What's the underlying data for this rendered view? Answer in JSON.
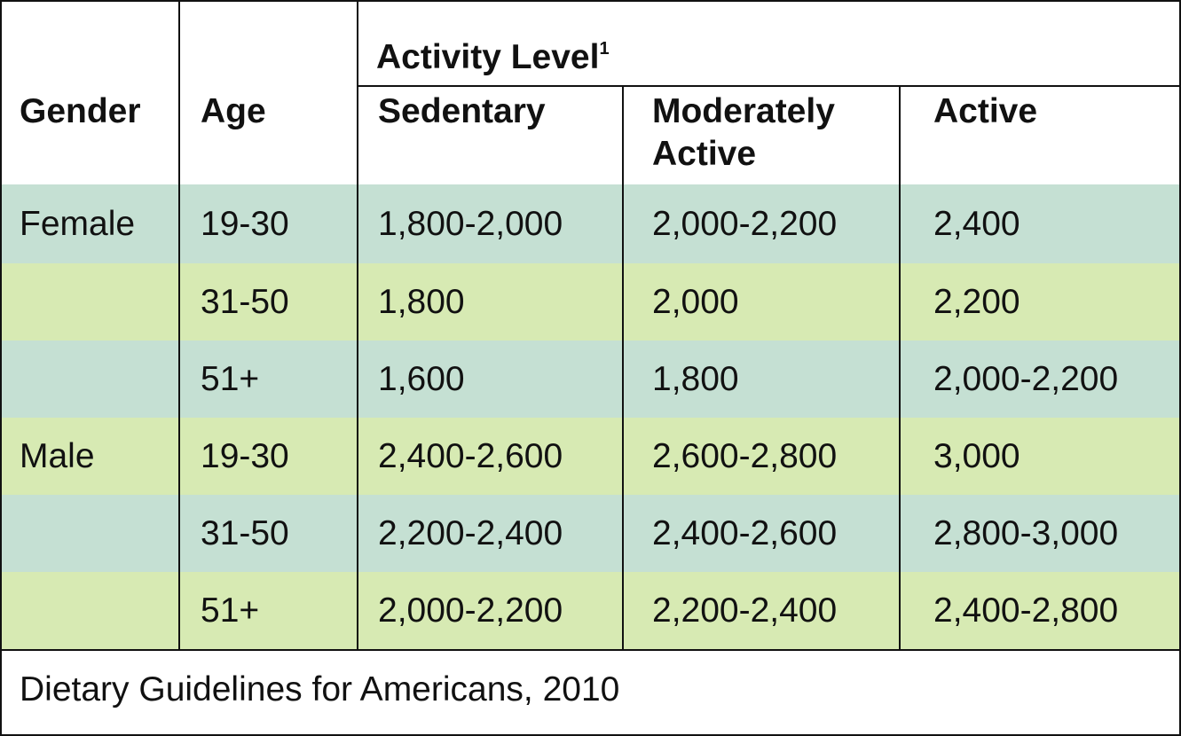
{
  "header": {
    "gender": "Gender",
    "age": "Age",
    "activity_level": "Activity Level",
    "activity_level_note": "1",
    "columns": [
      "Sedentary",
      "Moderately Active",
      "Active"
    ]
  },
  "table": {
    "rows": [
      {
        "gender": "Female",
        "age": "19-30",
        "values": [
          "1,800-2,000",
          "2,000-2,200",
          "2,400"
        ]
      },
      {
        "age": "31-50",
        "values": [
          "1,800",
          "2,000",
          "2,200"
        ]
      },
      {
        "age": "51+",
        "values": [
          "1,600",
          "1,800",
          "2,000-2,200"
        ]
      },
      {
        "gender": "Male",
        "age": "19-30",
        "values": [
          "2,400-2,600",
          "2,600-2,800",
          "3,000"
        ]
      },
      {
        "age": "31-50",
        "values": [
          "2,200-2,400",
          "2,400-2,600",
          "2,800-3,000"
        ]
      },
      {
        "age": "51+",
        "values": [
          "2,000-2,200",
          "2,200-2,400",
          "2,400-2,800"
        ]
      }
    ]
  },
  "footnote": "Dietary Guidelines for Americans, 2010"
}
